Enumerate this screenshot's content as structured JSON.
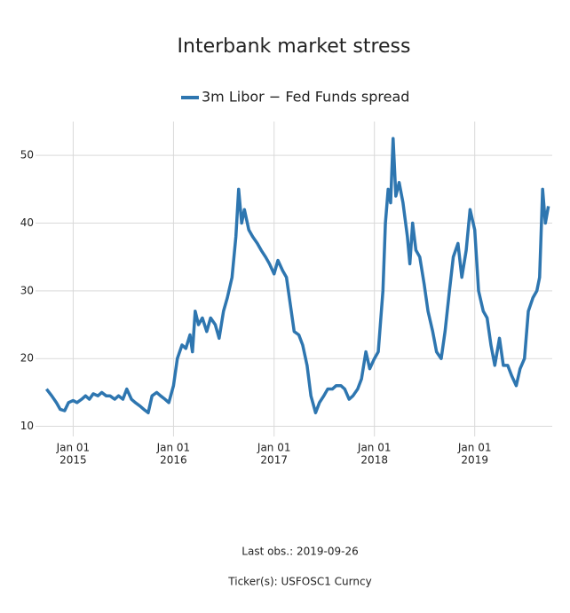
{
  "chart_data": {
    "type": "line",
    "title": "Interbank market stress",
    "series": [
      {
        "name": "3m Libor − Fed Funds spread",
        "color": "#2e76b0",
        "x": [
          "2014-09-26",
          "2014-10-15",
          "2014-11-01",
          "2014-11-15",
          "2014-12-01",
          "2014-12-15",
          "2015-01-01",
          "2015-01-15",
          "2015-02-01",
          "2015-02-15",
          "2015-03-01",
          "2015-03-15",
          "2015-04-01",
          "2015-04-15",
          "2015-05-01",
          "2015-05-15",
          "2015-06-01",
          "2015-06-15",
          "2015-07-01",
          "2015-07-15",
          "2015-08-01",
          "2015-08-15",
          "2015-09-01",
          "2015-09-15",
          "2015-10-01",
          "2015-10-15",
          "2015-11-01",
          "2015-11-15",
          "2015-12-01",
          "2015-12-15",
          "2016-01-01",
          "2016-01-15",
          "2016-02-01",
          "2016-02-15",
          "2016-03-01",
          "2016-03-10",
          "2016-03-20",
          "2016-04-01",
          "2016-04-15",
          "2016-05-01",
          "2016-05-15",
          "2016-06-01",
          "2016-06-15",
          "2016-07-01",
          "2016-07-15",
          "2016-08-01",
          "2016-08-15",
          "2016-08-25",
          "2016-09-05",
          "2016-09-15",
          "2016-10-01",
          "2016-10-15",
          "2016-11-01",
          "2016-11-15",
          "2016-12-01",
          "2016-12-15",
          "2017-01-01",
          "2017-01-15",
          "2017-02-01",
          "2017-02-15",
          "2017-03-01",
          "2017-03-15",
          "2017-04-01",
          "2017-04-15",
          "2017-05-01",
          "2017-05-15",
          "2017-06-01",
          "2017-06-15",
          "2017-07-01",
          "2017-07-15",
          "2017-08-01",
          "2017-08-15",
          "2017-09-01",
          "2017-09-15",
          "2017-10-01",
          "2017-10-15",
          "2017-11-01",
          "2017-11-15",
          "2017-12-01",
          "2017-12-15",
          "2018-01-01",
          "2018-01-15",
          "2018-02-01",
          "2018-02-10",
          "2018-02-20",
          "2018-03-01",
          "2018-03-10",
          "2018-03-20",
          "2018-04-01",
          "2018-04-15",
          "2018-05-01",
          "2018-05-10",
          "2018-05-20",
          "2018-06-01",
          "2018-06-15",
          "2018-07-01",
          "2018-07-15",
          "2018-08-01",
          "2018-08-15",
          "2018-09-01",
          "2018-09-15",
          "2018-10-01",
          "2018-10-15",
          "2018-11-01",
          "2018-11-15",
          "2018-12-01",
          "2018-12-15",
          "2019-01-01",
          "2019-01-15",
          "2019-02-01",
          "2019-02-15",
          "2019-03-01",
          "2019-03-15",
          "2019-04-01",
          "2019-04-15",
          "2019-05-01",
          "2019-05-15",
          "2019-06-01",
          "2019-06-15",
          "2019-07-01",
          "2019-07-15",
          "2019-08-01",
          "2019-08-15",
          "2019-08-25",
          "2019-09-05",
          "2019-09-15",
          "2019-09-26"
        ],
        "values": [
          15.5,
          14.5,
          13.5,
          12.5,
          12.3,
          13.5,
          13.8,
          13.5,
          14.0,
          14.5,
          14.0,
          14.8,
          14.5,
          15.0,
          14.5,
          14.5,
          14.0,
          14.5,
          14.0,
          15.5,
          14.0,
          13.5,
          13.0,
          12.5,
          12.0,
          14.5,
          15.0,
          14.5,
          14.0,
          13.5,
          16.0,
          20.0,
          22.0,
          21.5,
          23.5,
          21.0,
          27.0,
          25.0,
          26.0,
          24.0,
          26.0,
          25.0,
          23.0,
          27.0,
          29.0,
          32.0,
          38.0,
          45.0,
          40.0,
          42.0,
          39.0,
          38.0,
          37.0,
          36.0,
          35.0,
          34.0,
          32.5,
          34.5,
          33.0,
          32.0,
          28.0,
          24.0,
          23.5,
          22.0,
          19.0,
          14.5,
          12.0,
          13.5,
          14.5,
          15.5,
          15.5,
          16.0,
          16.0,
          15.5,
          14.0,
          14.5,
          15.5,
          17.0,
          21.0,
          18.5,
          20.0,
          21.0,
          30.0,
          40.0,
          45.0,
          43.0,
          52.5,
          44.0,
          46.0,
          43.0,
          38.0,
          34.0,
          40.0,
          36.0,
          35.0,
          31.0,
          27.0,
          24.0,
          21.0,
          20.0,
          24.0,
          30.0,
          35.0,
          37.0,
          32.0,
          36.0,
          42.0,
          39.0,
          30.0,
          27.0,
          26.0,
          22.0,
          19.0,
          23.0,
          19.0,
          19.0,
          17.5,
          16.0,
          18.5,
          20.0,
          27.0,
          29.0,
          30.0,
          32.0,
          45.0,
          40.0,
          42.5
        ]
      }
    ],
    "xlim": [
      "2014-08-17",
      "2019-10-10"
    ],
    "xticks": [
      {
        "value": "2015-01-01",
        "label": "Jan 01",
        "sublabel": "2015"
      },
      {
        "value": "2016-01-01",
        "label": "Jan 01",
        "sublabel": "2016"
      },
      {
        "value": "2017-01-01",
        "label": "Jan 01",
        "sublabel": "2017"
      },
      {
        "value": "2018-01-01",
        "label": "Jan 01",
        "sublabel": "2018"
      },
      {
        "value": "2019-01-01",
        "label": "Jan 01",
        "sublabel": "2019"
      }
    ],
    "ylim": [
      8.5,
      55
    ],
    "yticks": [
      10,
      20,
      30,
      40,
      50
    ],
    "grid": true,
    "notes": [
      "Last obs.: 2019-09-26",
      "Ticker(s): USFOSC1 Curncy"
    ]
  }
}
